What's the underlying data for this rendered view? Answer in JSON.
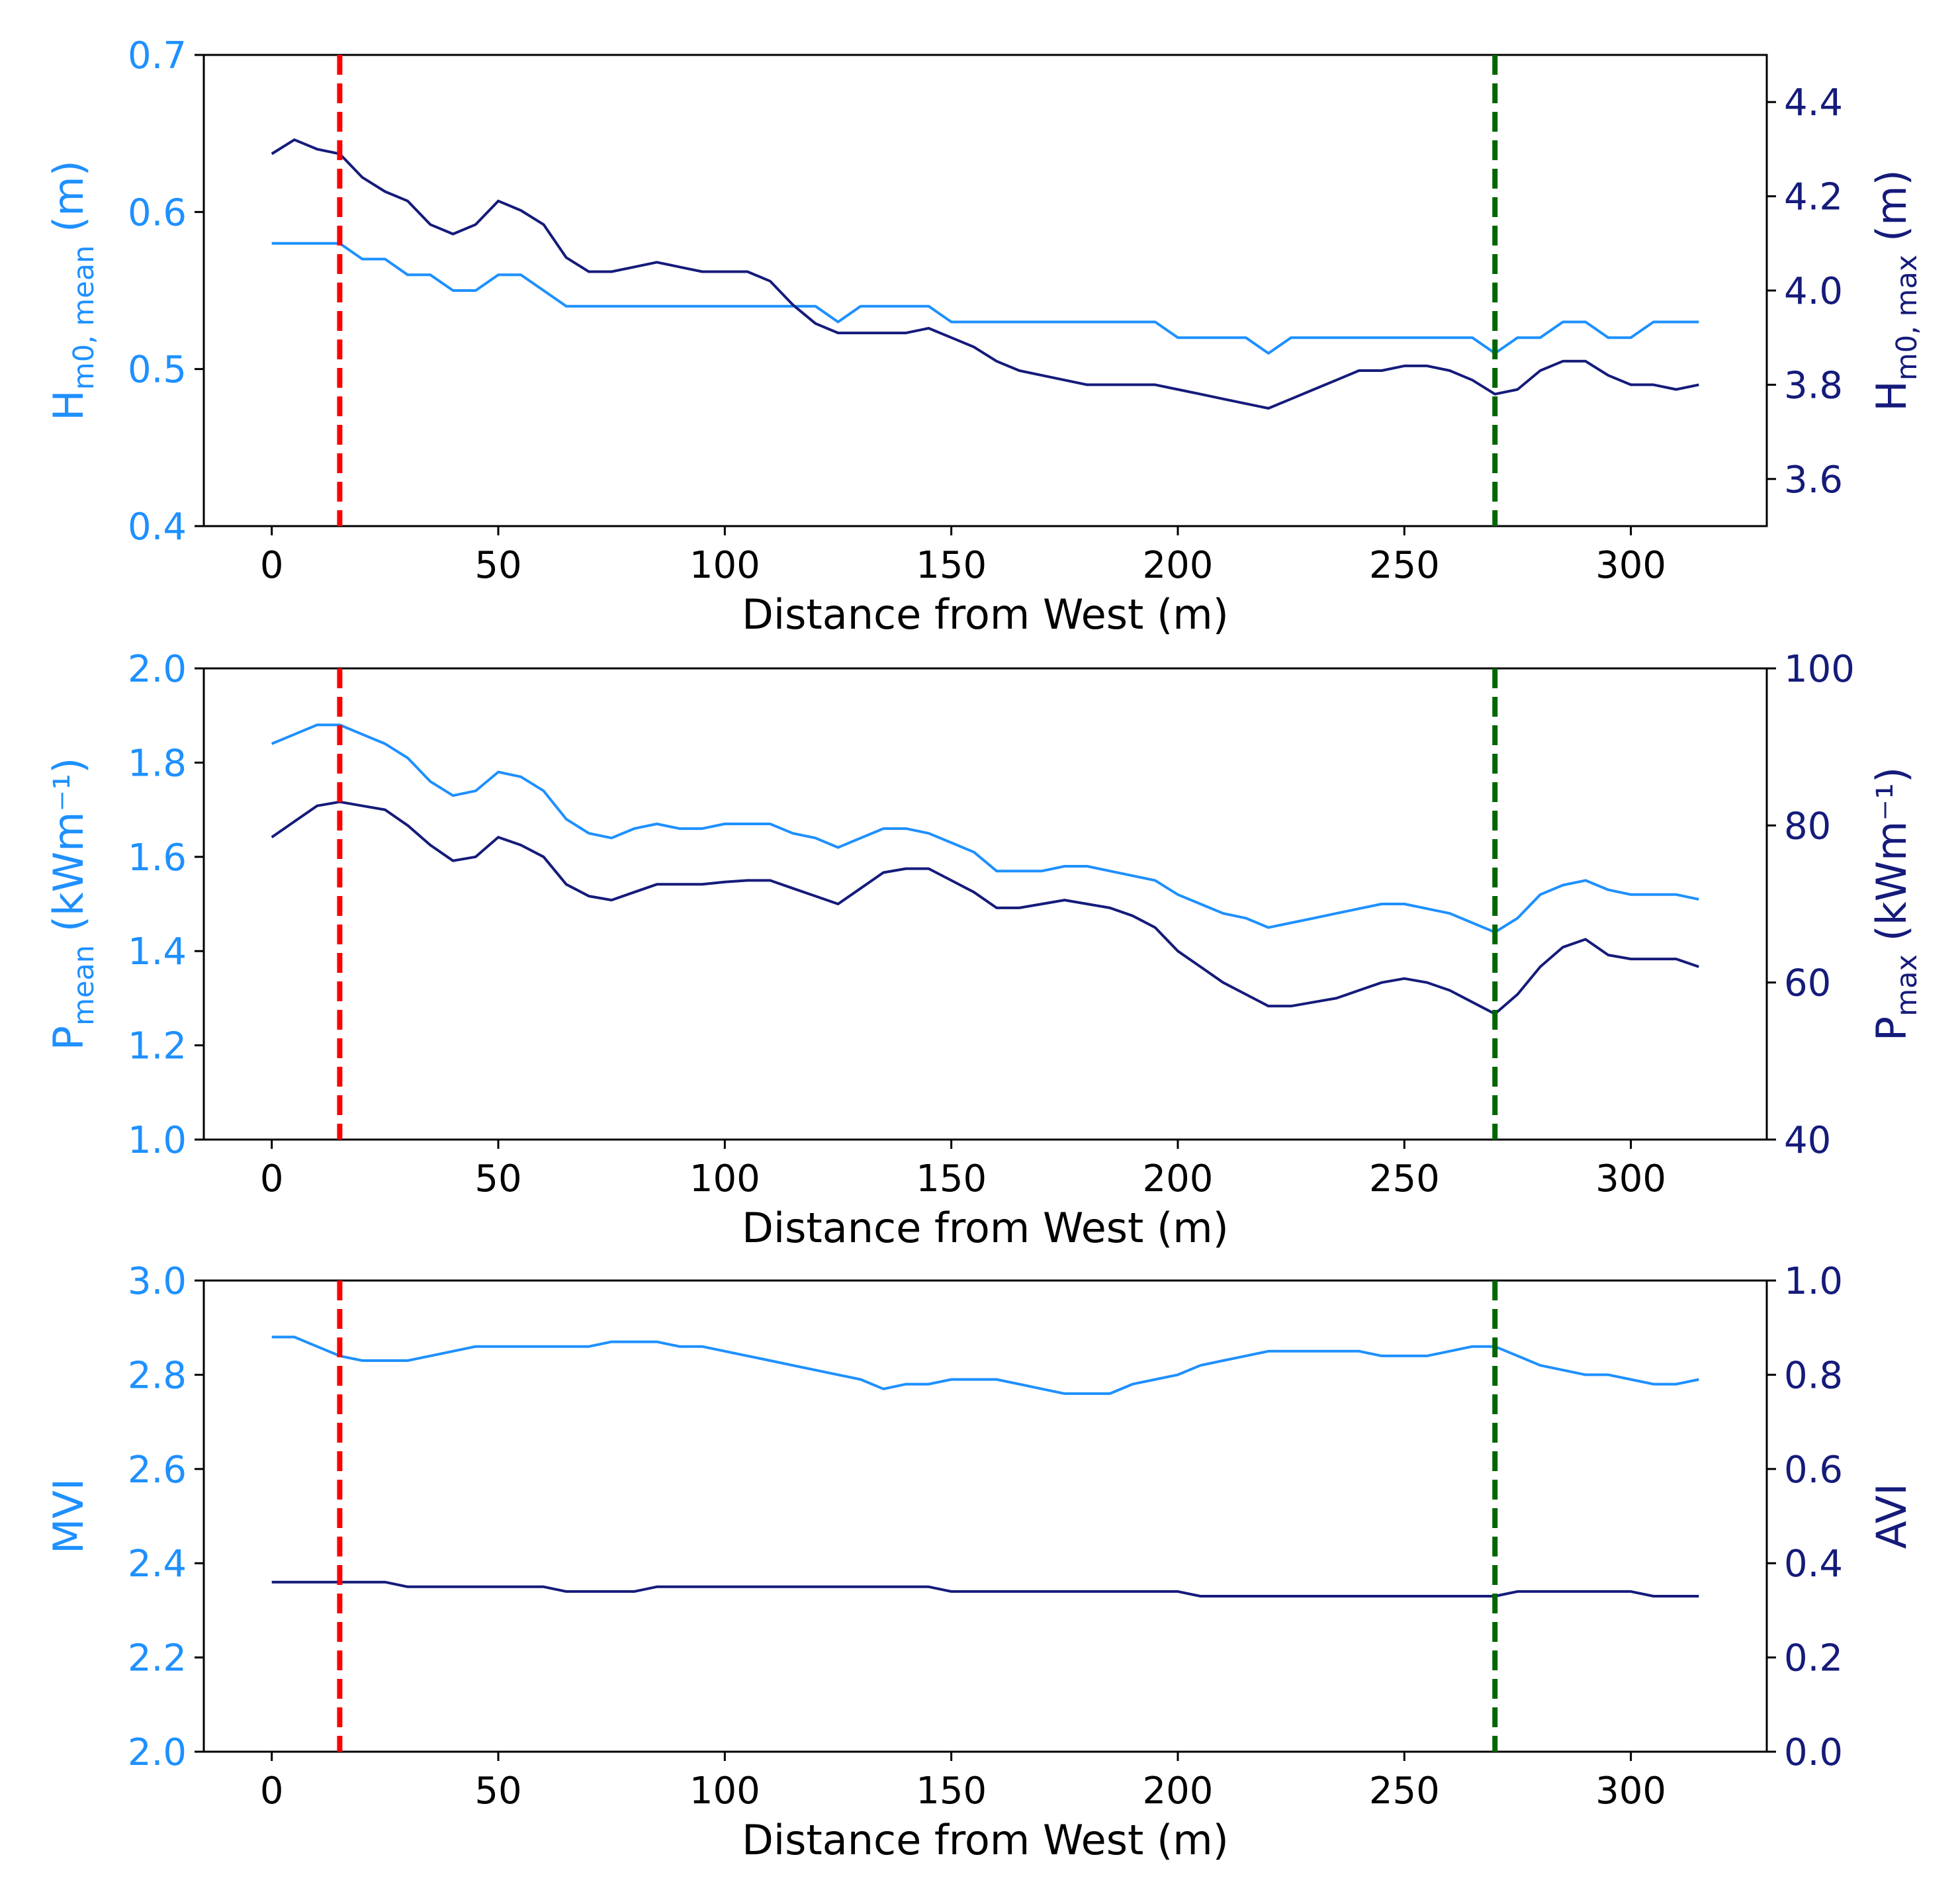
{
  "colors": {
    "primary": "#1e90ff",
    "secondary": "#151b7a",
    "marker_west": "#ff0000",
    "marker_east": "#006600",
    "axis": "#000000"
  },
  "marker_lines": [
    15,
    270
  ],
  "chart_data": [
    {
      "type": "line",
      "title": "",
      "xlabel": "Distance from West (m)",
      "xlim": [
        -15,
        330
      ],
      "xticks": [
        0,
        50,
        100,
        150,
        200,
        250,
        300
      ],
      "ylabel_left": {
        "main": "H",
        "sub": "m0, mean",
        "unit": " (m)"
      },
      "ylabel_right": {
        "main": "H",
        "sub": "m0, max",
        "unit": " (m)"
      },
      "ylim_left": [
        0.4,
        0.7
      ],
      "yticks_left": [
        "0.4",
        "0.5",
        "0.6",
        "0.7"
      ],
      "ylim_right": [
        3.5,
        4.5
      ],
      "yticks_right": [
        "3.6",
        "3.8",
        "4.0",
        "4.2",
        "4.4"
      ],
      "x": [
        0,
        5,
        10,
        15,
        20,
        25,
        30,
        35,
        40,
        45,
        50,
        55,
        60,
        65,
        70,
        75,
        80,
        85,
        90,
        95,
        100,
        105,
        110,
        115,
        120,
        125,
        130,
        135,
        140,
        145,
        150,
        155,
        160,
        165,
        170,
        175,
        180,
        185,
        190,
        195,
        200,
        205,
        210,
        215,
        220,
        225,
        230,
        235,
        240,
        245,
        250,
        255,
        260,
        265,
        270,
        275,
        280,
        285,
        290,
        295,
        300,
        305,
        310,
        315
      ],
      "series": [
        {
          "name": "Hm0,mean",
          "axis": "left",
          "color": "#1e90ff",
          "values": [
            0.58,
            0.58,
            0.58,
            0.58,
            0.57,
            0.57,
            0.56,
            0.56,
            0.55,
            0.55,
            0.56,
            0.56,
            0.55,
            0.54,
            0.54,
            0.54,
            0.54,
            0.54,
            0.54,
            0.54,
            0.54,
            0.54,
            0.54,
            0.54,
            0.54,
            0.53,
            0.54,
            0.54,
            0.54,
            0.54,
            0.53,
            0.53,
            0.53,
            0.53,
            0.53,
            0.53,
            0.53,
            0.53,
            0.53,
            0.53,
            0.52,
            0.52,
            0.52,
            0.52,
            0.51,
            0.52,
            0.52,
            0.52,
            0.52,
            0.52,
            0.52,
            0.52,
            0.52,
            0.52,
            0.51,
            0.52,
            0.52,
            0.53,
            0.53,
            0.52,
            0.52,
            0.53,
            0.53,
            0.53
          ]
        },
        {
          "name": "Hm0,max",
          "axis": "right",
          "color": "#151b7a",
          "values": [
            4.29,
            4.32,
            4.3,
            4.29,
            4.24,
            4.21,
            4.19,
            4.14,
            4.12,
            4.14,
            4.19,
            4.17,
            4.14,
            4.07,
            4.04,
            4.04,
            4.05,
            4.06,
            4.05,
            4.04,
            4.04,
            4.04,
            4.02,
            3.97,
            3.93,
            3.91,
            3.91,
            3.91,
            3.91,
            3.92,
            3.9,
            3.88,
            3.85,
            3.83,
            3.82,
            3.81,
            3.8,
            3.8,
            3.8,
            3.8,
            3.79,
            3.78,
            3.77,
            3.76,
            3.75,
            3.77,
            3.79,
            3.81,
            3.83,
            3.83,
            3.84,
            3.84,
            3.83,
            3.81,
            3.78,
            3.79,
            3.83,
            3.85,
            3.85,
            3.82,
            3.8,
            3.8,
            3.79,
            3.8
          ]
        }
      ]
    },
    {
      "type": "line",
      "title": "",
      "xlabel": "Distance from West (m)",
      "xlim": [
        -15,
        330
      ],
      "xticks": [
        0,
        50,
        100,
        150,
        200,
        250,
        300
      ],
      "ylabel_left": {
        "main": "P",
        "sub": "mean",
        "unit": " (kWm⁻¹)"
      },
      "ylabel_right": {
        "main": "P",
        "sub": "max",
        "unit": " (kWm⁻¹)"
      },
      "ylim_left": [
        1.0,
        2.0
      ],
      "yticks_left": [
        "1.0",
        "1.2",
        "1.4",
        "1.6",
        "1.8",
        "2.0"
      ],
      "ylim_right": [
        40,
        100
      ],
      "yticks_right": [
        "40",
        "60",
        "80",
        "100"
      ],
      "x": [
        0,
        5,
        10,
        15,
        20,
        25,
        30,
        35,
        40,
        45,
        50,
        55,
        60,
        65,
        70,
        75,
        80,
        85,
        90,
        95,
        100,
        105,
        110,
        115,
        120,
        125,
        130,
        135,
        140,
        145,
        150,
        155,
        160,
        165,
        170,
        175,
        180,
        185,
        190,
        195,
        200,
        205,
        210,
        215,
        220,
        225,
        230,
        235,
        240,
        245,
        250,
        255,
        260,
        265,
        270,
        275,
        280,
        285,
        290,
        295,
        300,
        305,
        310,
        315
      ],
      "series": [
        {
          "name": "Pmean",
          "axis": "left",
          "color": "#1e90ff",
          "values": [
            1.84,
            1.86,
            1.88,
            1.88,
            1.86,
            1.84,
            1.81,
            1.76,
            1.73,
            1.74,
            1.78,
            1.77,
            1.74,
            1.68,
            1.65,
            1.64,
            1.66,
            1.67,
            1.66,
            1.66,
            1.67,
            1.67,
            1.67,
            1.65,
            1.64,
            1.62,
            1.64,
            1.66,
            1.66,
            1.65,
            1.63,
            1.61,
            1.57,
            1.57,
            1.57,
            1.58,
            1.58,
            1.57,
            1.56,
            1.55,
            1.52,
            1.5,
            1.48,
            1.47,
            1.45,
            1.46,
            1.47,
            1.48,
            1.49,
            1.5,
            1.5,
            1.49,
            1.48,
            1.46,
            1.44,
            1.47,
            1.52,
            1.54,
            1.55,
            1.53,
            1.52,
            1.52,
            1.52,
            1.51
          ]
        },
        {
          "name": "Pmax",
          "axis": "right",
          "color": "#151b7a",
          "values": [
            78.5,
            80.5,
            82.5,
            83.0,
            82.5,
            82.0,
            80.0,
            77.5,
            75.5,
            76.0,
            78.5,
            77.5,
            76.0,
            72.5,
            71.0,
            70.5,
            71.5,
            72.5,
            72.5,
            72.5,
            72.8,
            73.0,
            73.0,
            72.0,
            71.0,
            70.0,
            72.0,
            74.0,
            74.5,
            74.5,
            73.0,
            71.5,
            69.5,
            69.5,
            70.0,
            70.5,
            70.0,
            69.5,
            68.5,
            67.0,
            64.0,
            62.0,
            60.0,
            58.5,
            57.0,
            57.0,
            57.5,
            58.0,
            59.0,
            60.0,
            60.5,
            60.0,
            59.0,
            57.5,
            56.0,
            58.5,
            62.0,
            64.5,
            65.5,
            63.5,
            63.0,
            63.0,
            63.0,
            62.0
          ]
        }
      ]
    },
    {
      "type": "line",
      "title": "",
      "xlabel": "Distance from West (m)",
      "xlim": [
        -15,
        330
      ],
      "xticks": [
        0,
        50,
        100,
        150,
        200,
        250,
        300
      ],
      "ylabel_left": {
        "main": "MVI",
        "sub": "",
        "unit": ""
      },
      "ylabel_right": {
        "main": "AVI",
        "sub": "",
        "unit": ""
      },
      "ylim_left": [
        2.0,
        3.0
      ],
      "yticks_left": [
        "2.0",
        "2.2",
        "2.4",
        "2.6",
        "2.8",
        "3.0"
      ],
      "ylim_right": [
        0.0,
        1.0
      ],
      "yticks_right": [
        "0.0",
        "0.2",
        "0.4",
        "0.6",
        "0.8",
        "1.0"
      ],
      "x": [
        0,
        5,
        10,
        15,
        20,
        25,
        30,
        35,
        40,
        45,
        50,
        55,
        60,
        65,
        70,
        75,
        80,
        85,
        90,
        95,
        100,
        105,
        110,
        115,
        120,
        125,
        130,
        135,
        140,
        145,
        150,
        155,
        160,
        165,
        170,
        175,
        180,
        185,
        190,
        195,
        200,
        205,
        210,
        215,
        220,
        225,
        230,
        235,
        240,
        245,
        250,
        255,
        260,
        265,
        270,
        275,
        280,
        285,
        290,
        295,
        300,
        305,
        310,
        315
      ],
      "series": [
        {
          "name": "MVI",
          "axis": "left",
          "color": "#1e90ff",
          "values": [
            2.88,
            2.88,
            2.86,
            2.84,
            2.83,
            2.83,
            2.83,
            2.84,
            2.85,
            2.86,
            2.86,
            2.86,
            2.86,
            2.86,
            2.86,
            2.87,
            2.87,
            2.87,
            2.86,
            2.86,
            2.85,
            2.84,
            2.83,
            2.82,
            2.81,
            2.8,
            2.79,
            2.77,
            2.78,
            2.78,
            2.79,
            2.79,
            2.79,
            2.78,
            2.77,
            2.76,
            2.76,
            2.76,
            2.78,
            2.79,
            2.8,
            2.82,
            2.83,
            2.84,
            2.85,
            2.85,
            2.85,
            2.85,
            2.85,
            2.84,
            2.84,
            2.84,
            2.85,
            2.86,
            2.86,
            2.84,
            2.82,
            2.81,
            2.8,
            2.8,
            2.79,
            2.78,
            2.78,
            2.79
          ]
        },
        {
          "name": "AVI",
          "axis": "right",
          "color": "#151b7a",
          "values": [
            0.36,
            0.36,
            0.36,
            0.36,
            0.36,
            0.36,
            0.35,
            0.35,
            0.35,
            0.35,
            0.35,
            0.35,
            0.35,
            0.34,
            0.34,
            0.34,
            0.34,
            0.35,
            0.35,
            0.35,
            0.35,
            0.35,
            0.35,
            0.35,
            0.35,
            0.35,
            0.35,
            0.35,
            0.35,
            0.35,
            0.34,
            0.34,
            0.34,
            0.34,
            0.34,
            0.34,
            0.34,
            0.34,
            0.34,
            0.34,
            0.34,
            0.33,
            0.33,
            0.33,
            0.33,
            0.33,
            0.33,
            0.33,
            0.33,
            0.33,
            0.33,
            0.33,
            0.33,
            0.33,
            0.33,
            0.34,
            0.34,
            0.34,
            0.34,
            0.34,
            0.34,
            0.33,
            0.33,
            0.33
          ]
        }
      ]
    }
  ]
}
